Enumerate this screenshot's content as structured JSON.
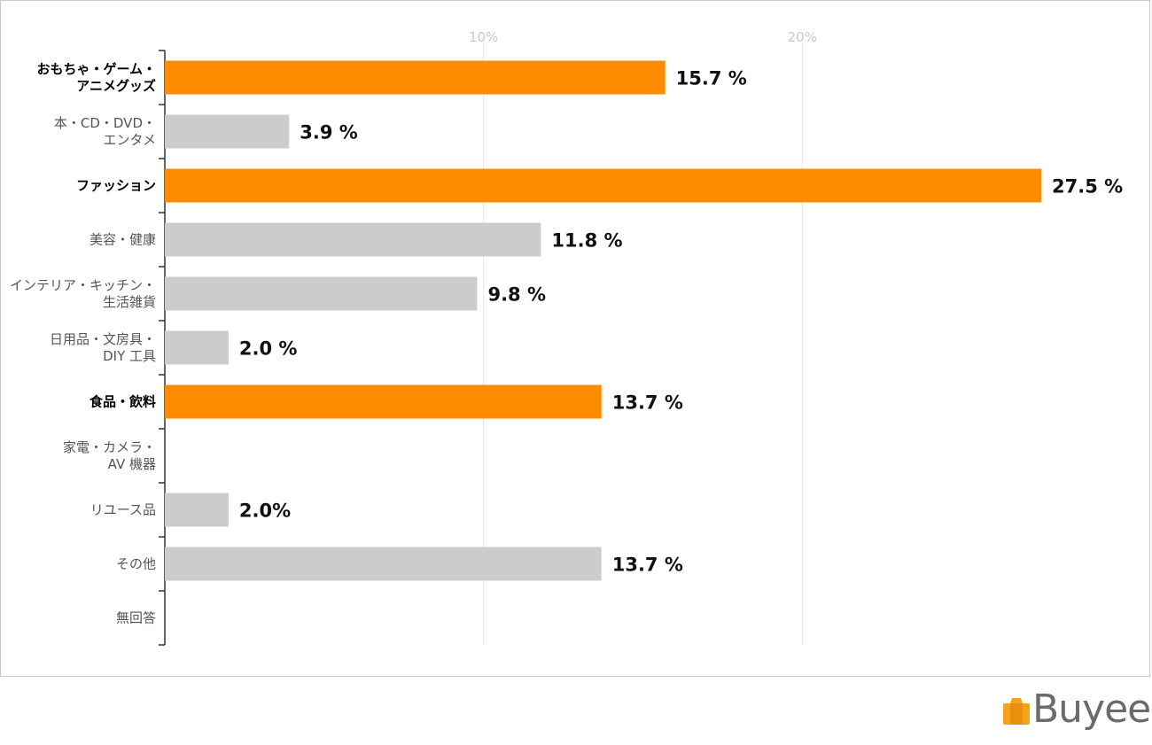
{
  "chart_data": {
    "type": "bar",
    "orientation": "horizontal",
    "xlim": [
      0,
      28.5
    ],
    "ticks": [
      {
        "value": 10,
        "label": "10%"
      },
      {
        "value": 20,
        "label": "20%"
      }
    ],
    "grid": true,
    "categories": [
      {
        "lines": [
          "おもちゃ・ゲーム・",
          "アニメグッズ"
        ],
        "value": 15.7,
        "value_label": "15.7 %",
        "highlight": true
      },
      {
        "lines": [
          "本・CD・DVD・",
          "エンタメ"
        ],
        "value": 3.9,
        "value_label": "3.9 %",
        "highlight": false
      },
      {
        "lines": [
          "ファッション"
        ],
        "value": 27.5,
        "value_label": "27.5 %",
        "highlight": true
      },
      {
        "lines": [
          "美容・健康"
        ],
        "value": 11.8,
        "value_label": "11.8 %",
        "highlight": false
      },
      {
        "lines": [
          "インテリア・キッチン・",
          "生活雑貨"
        ],
        "value": 9.8,
        "value_label": "9.8 %",
        "highlight": false
      },
      {
        "lines": [
          "日用品・文房具・",
          "DIY 工具"
        ],
        "value": 2.0,
        "value_label": "2.0 %",
        "highlight": false
      },
      {
        "lines": [
          "食品・飲料"
        ],
        "value": 13.7,
        "value_label": "13.7 %",
        "highlight": true
      },
      {
        "lines": [
          "家電・カメラ・",
          "AV 機器"
        ],
        "value": 0,
        "value_label": "",
        "highlight": false
      },
      {
        "lines": [
          "リユース品"
        ],
        "value": 2.0,
        "value_label": "2.0%",
        "highlight": false
      },
      {
        "lines": [
          "その他"
        ],
        "value": 13.7,
        "value_label": "13.7 %",
        "highlight": false
      },
      {
        "lines": [
          "無回答"
        ],
        "value": 0,
        "value_label": "",
        "highlight": false
      }
    ],
    "colors": {
      "highlight": "#FF8C00",
      "normal": "#CCCCCC",
      "axis": "#333333",
      "grid": "#E6E6E6"
    }
  },
  "logo": {
    "text": "Buyee",
    "colors": {
      "box": "#F7A21B",
      "text": "#6b6b6b"
    }
  }
}
